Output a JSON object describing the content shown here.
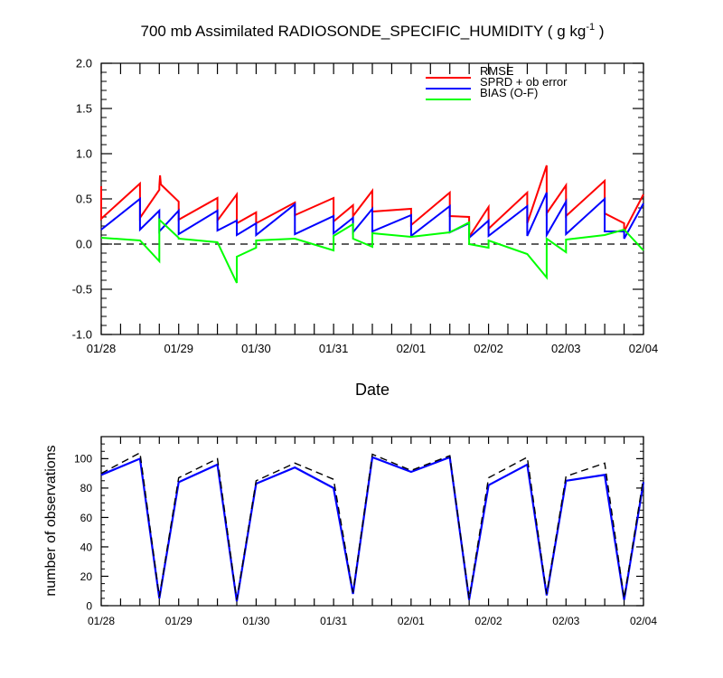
{
  "chart_data": [
    {
      "type": "line",
      "title": "700 mb Assimilated RADIOSONDE_SPECIFIC_HUMIDITY ( g kg",
      "title_superscript": "-1",
      "title_suffix": " )",
      "xlabel": "Date",
      "ylabel": "",
      "xlim": [
        0,
        7
      ],
      "ylim": [
        -1.0,
        2.0
      ],
      "x_tick_labels": [
        "01/28",
        "01/29",
        "01/30",
        "01/31",
        "02/01",
        "02/02",
        "02/03",
        "02/04"
      ],
      "y_tick_labels": [
        "-1.0",
        "-0.5",
        "0.0",
        "0.5",
        "1.0",
        "1.5",
        "2.0"
      ],
      "y_tick_values": [
        -1.0,
        -0.5,
        0.0,
        0.5,
        1.0,
        1.5,
        2.0
      ],
      "zero_line": true,
      "legend_position": "top-right",
      "series": [
        {
          "name": "RMSE",
          "color": "#ff0000",
          "segments": [
            [
              [
                0.0,
                0.64
              ],
              [
                0.0,
                0.28
              ],
              [
                0.5,
                0.67
              ],
              [
                0.5,
                0.29
              ],
              [
                0.75,
                0.6
              ],
              [
                0.75,
                0.64
              ]
            ],
            [
              [
                0.75,
                0.64
              ],
              [
                0.76,
                0.76
              ],
              [
                0.77,
                0.66
              ],
              [
                1.0,
                0.47
              ],
              [
                1.0,
                0.27
              ],
              [
                1.5,
                0.51
              ],
              [
                1.5,
                0.26
              ],
              [
                1.75,
                0.55
              ],
              [
                1.75,
                0.23
              ],
              [
                2.0,
                0.35
              ],
              [
                2.0,
                0.23
              ],
              [
                2.5,
                0.46
              ],
              [
                2.5,
                0.32
              ],
              [
                3.0,
                0.51
              ],
              [
                3.0,
                0.25
              ],
              [
                3.25,
                0.43
              ],
              [
                3.25,
                0.31
              ],
              [
                3.5,
                0.59
              ],
              [
                3.5,
                0.36
              ],
              [
                4.0,
                0.39
              ],
              [
                4.0,
                0.21
              ],
              [
                4.5,
                0.57
              ],
              [
                4.5,
                0.31
              ],
              [
                4.75,
                0.3
              ],
              [
                4.75,
                0.08
              ],
              [
                5.0,
                0.41
              ],
              [
                5.0,
                0.17
              ],
              [
                5.5,
                0.57
              ],
              [
                5.5,
                0.23
              ],
              [
                5.75,
                0.87
              ],
              [
                5.75,
                0.34
              ],
              [
                6.0,
                0.65
              ],
              [
                6.0,
                0.31
              ],
              [
                6.5,
                0.7
              ],
              [
                6.5,
                0.34
              ],
              [
                6.75,
                0.23
              ],
              [
                6.75,
                0.14
              ],
              [
                7.0,
                0.55
              ]
            ]
          ]
        },
        {
          "name": "SPRD + ob error",
          "color": "#0000ff",
          "segments": [
            [
              [
                0.0,
                0.16
              ],
              [
                0.5,
                0.5
              ],
              [
                0.5,
                0.16
              ],
              [
                0.75,
                0.37
              ],
              [
                0.75,
                0.14
              ],
              [
                1.0,
                0.37
              ],
              [
                1.0,
                0.11
              ],
              [
                1.5,
                0.37
              ],
              [
                1.5,
                0.15
              ],
              [
                1.75,
                0.26
              ],
              [
                1.75,
                0.1
              ],
              [
                2.0,
                0.23
              ],
              [
                2.0,
                0.1
              ],
              [
                2.5,
                0.44
              ],
              [
                2.5,
                0.11
              ],
              [
                3.0,
                0.31
              ],
              [
                3.0,
                0.12
              ],
              [
                3.25,
                0.29
              ],
              [
                3.25,
                0.13
              ],
              [
                3.5,
                0.39
              ],
              [
                3.5,
                0.14
              ],
              [
                4.0,
                0.32
              ],
              [
                4.0,
                0.09
              ],
              [
                4.5,
                0.42
              ],
              [
                4.5,
                0.13
              ],
              [
                4.75,
                0.23
              ],
              [
                4.75,
                0.07
              ],
              [
                5.0,
                0.26
              ],
              [
                5.0,
                0.09
              ],
              [
                5.5,
                0.42
              ],
              [
                5.5,
                0.09
              ],
              [
                5.75,
                0.57
              ],
              [
                5.75,
                0.1
              ],
              [
                6.0,
                0.47
              ],
              [
                6.0,
                0.11
              ],
              [
                6.5,
                0.5
              ],
              [
                6.5,
                0.14
              ],
              [
                6.75,
                0.14
              ],
              [
                6.75,
                0.06
              ],
              [
                7.0,
                0.45
              ]
            ]
          ]
        },
        {
          "name": "BIAS (O-F)",
          "color": "#00ff00",
          "segments": [
            [
              [
                0.0,
                0.07
              ],
              [
                0.5,
                0.04
              ],
              [
                0.75,
                -0.19
              ],
              [
                0.75,
                0.27
              ],
              [
                1.0,
                0.07
              ],
              [
                1.0,
                0.06
              ],
              [
                1.5,
                0.02
              ],
              [
                1.75,
                -0.43
              ],
              [
                1.75,
                -0.14
              ],
              [
                2.0,
                -0.04
              ],
              [
                2.0,
                0.04
              ],
              [
                2.5,
                0.06
              ],
              [
                3.0,
                -0.07
              ],
              [
                3.0,
                0.09
              ],
              [
                3.25,
                0.22
              ],
              [
                3.25,
                0.06
              ],
              [
                3.5,
                -0.03
              ],
              [
                3.5,
                0.12
              ],
              [
                4.0,
                0.08
              ],
              [
                4.5,
                0.13
              ],
              [
                4.75,
                0.24
              ],
              [
                4.75,
                0.0
              ],
              [
                5.0,
                -0.04
              ],
              [
                5.0,
                0.04
              ],
              [
                5.5,
                -0.11
              ],
              [
                5.75,
                -0.37
              ],
              [
                5.75,
                0.06
              ],
              [
                6.0,
                -0.09
              ],
              [
                6.0,
                0.05
              ],
              [
                6.5,
                0.1
              ],
              [
                6.75,
                0.16
              ],
              [
                7.0,
                -0.07
              ]
            ]
          ]
        }
      ]
    },
    {
      "type": "line",
      "title": "",
      "xlabel": "",
      "ylabel": "number of observations",
      "xlim": [
        0,
        7
      ],
      "ylim": [
        0,
        115
      ],
      "x_tick_labels": [
        "01/28",
        "01/29",
        "01/30",
        "01/31",
        "02/01",
        "02/02",
        "02/03",
        "02/04"
      ],
      "y_tick_labels": [
        "0",
        "20",
        "40",
        "60",
        "80",
        "100"
      ],
      "y_tick_values": [
        0,
        20,
        40,
        60,
        80,
        100
      ],
      "series": [
        {
          "color": "#0000ff",
          "x": [
            0.0,
            0.5,
            0.75,
            1.0,
            1.5,
            1.75,
            2.0,
            2.5,
            3.0,
            3.25,
            3.5,
            4.0,
            4.5,
            4.75,
            5.0,
            5.5,
            5.75,
            6.0,
            6.5,
            6.75,
            7.0
          ],
          "values": [
            89,
            100,
            5,
            84,
            96,
            3,
            83,
            94,
            80,
            8,
            101,
            91,
            101,
            4,
            82,
            96,
            7,
            85,
            89,
            4,
            84
          ]
        },
        {
          "color": "#000000",
          "dashed": true,
          "x": [
            0.0,
            0.5,
            0.75,
            1.0,
            1.5,
            1.75,
            2.0,
            2.5,
            3.0,
            3.25,
            3.5,
            4.0,
            4.5,
            4.75,
            5.0,
            5.5,
            5.75,
            6.0,
            6.5,
            6.75,
            7.0
          ],
          "values": [
            90,
            104,
            6,
            87,
            100,
            4,
            85,
            97,
            86,
            9,
            103,
            92,
            102,
            5,
            87,
            101,
            8,
            88,
            97,
            5,
            87
          ]
        }
      ]
    }
  ]
}
